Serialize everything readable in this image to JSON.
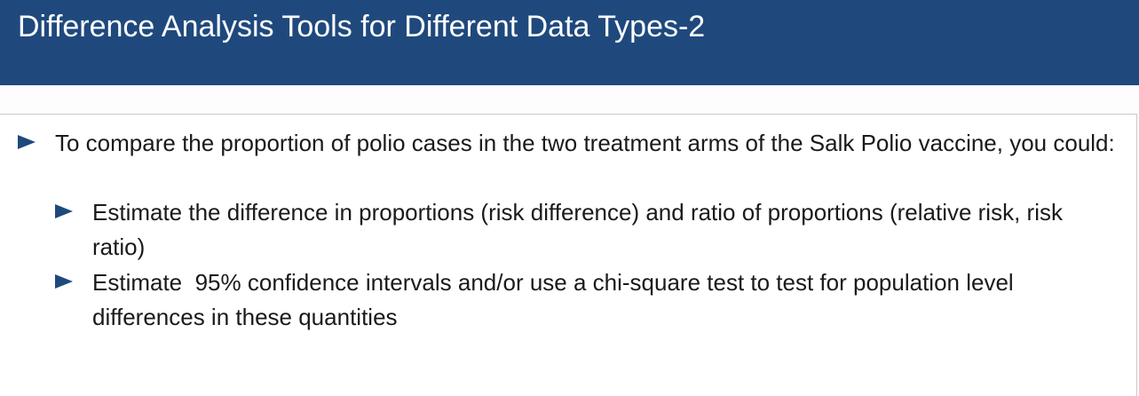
{
  "slide": {
    "title": "Difference Analysis Tools for Different Data Types-2",
    "accent_color": "#1f497d",
    "bullets": [
      {
        "text": "To compare the proportion of polio cases in the two treatment arms of the Salk Polio vaccine, you could:",
        "icon": "triangle-bullet-icon"
      },
      {
        "text": "Estimate the difference in proportions (risk difference) and ratio of proportions (relative risk, risk ratio)",
        "icon": "triangle-bullet-icon"
      },
      {
        "text": "Estimate  95% confidence intervals and/or use a chi-square test to test for population level differences in these quantities",
        "icon": "triangle-bullet-icon"
      }
    ]
  }
}
